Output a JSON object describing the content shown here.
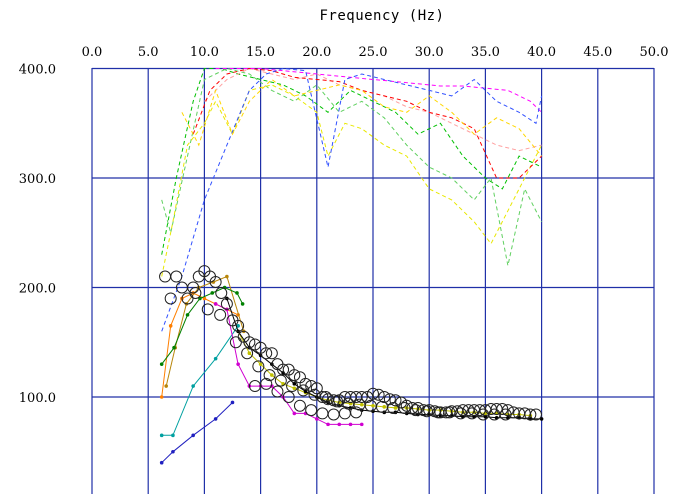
{
  "chart_data": {
    "type": "scatter",
    "title": "",
    "xlabel": "Frequency (Hz)",
    "ylabel": "",
    "xlim": [
      0,
      50
    ],
    "ylim": [
      0,
      400
    ],
    "x_ticks": [
      "0.0",
      "5.0",
      "10.0",
      "15.0",
      "20.0",
      "25.0",
      "30.0",
      "35.0",
      "40.0",
      "45.0",
      "50.0"
    ],
    "y_ticks": [
      "100.0",
      "200.0",
      "300.0",
      "400.0"
    ],
    "grid": true,
    "colors": {
      "grid": "#2030a8",
      "background": "#ffffff",
      "marker": "#222222"
    },
    "series": [
      {
        "style": "solid",
        "color": "#ff7f00",
        "x": [
          6.2,
          7.0,
          8.0,
          9.0,
          10.0,
          11.0,
          12.0,
          13.0
        ],
        "y": [
          100,
          165,
          190,
          195,
          190,
          185,
          180,
          175
        ]
      },
      {
        "style": "solid",
        "color": "#b8860b",
        "x": [
          6.6,
          7.4,
          8.4,
          9.5,
          10.8,
          12.0,
          13.5
        ],
        "y": [
          110,
          145,
          185,
          200,
          205,
          210,
          160
        ]
      },
      {
        "style": "solid",
        "color": "#00a0a0",
        "x": [
          6.2,
          7.2,
          9.0,
          11.0,
          13.0
        ],
        "y": [
          65,
          65,
          110,
          135,
          165
        ]
      },
      {
        "style": "solid",
        "color": "#008000",
        "x": [
          6.2,
          7.3,
          8.5,
          9.6,
          10.7,
          11.8,
          12.9,
          13.4
        ],
        "y": [
          130,
          145,
          175,
          190,
          195,
          200,
          195,
          185
        ]
      },
      {
        "style": "solid",
        "color": "#2020c0",
        "x": [
          6.2,
          7.2,
          9.0,
          11.0,
          12.5
        ],
        "y": [
          40,
          50,
          65,
          80,
          95
        ]
      },
      {
        "style": "solid",
        "color": "#d000d0",
        "x": [
          11.0,
          12.0,
          13.0,
          14.0,
          15.0,
          16.0,
          17.0,
          18.0,
          19.0,
          20.0,
          21.0,
          22.0,
          23.0,
          24.0
        ],
        "y": [
          185,
          180,
          130,
          110,
          110,
          110,
          100,
          85,
          85,
          80,
          75,
          75,
          75,
          75
        ]
      },
      {
        "style": "solid",
        "color": "#c0c000",
        "x": [
          13.0,
          14.0,
          15.0,
          16.0,
          17.0,
          18.0,
          19.0,
          20.0,
          21.0,
          22.0,
          23.0,
          24.0,
          25.0,
          26.0,
          27.0,
          28.0,
          29.0,
          30.0,
          31.0,
          32.0,
          33.0,
          34.0,
          35.0,
          36.0,
          37.0,
          38.0,
          39.0
        ],
        "y": [
          160,
          140,
          130,
          120,
          112,
          108,
          104,
          100,
          97,
          95,
          94,
          93,
          92,
          91,
          90,
          90,
          89,
          88,
          88,
          87,
          86,
          86,
          85,
          85,
          84,
          84,
          83
        ]
      },
      {
        "style": "solid",
        "color": "#000000",
        "x": [
          12.0,
          13.0,
          14.0,
          15.0,
          16.0,
          17.0,
          18.0,
          19.0,
          20.0,
          21.0,
          22.0,
          23.0,
          24.0,
          25.0,
          26.0,
          27.0,
          28.0,
          29.0,
          30.0,
          31.0,
          32.0,
          33.0,
          34.0,
          35.0,
          36.0,
          37.0,
          38.0,
          39.0,
          40.0
        ],
        "y": [
          190,
          160,
          145,
          138,
          130,
          122,
          112,
          105,
          100,
          95,
          92,
          90,
          88,
          87,
          86,
          86,
          85,
          84,
          84,
          83,
          83,
          82,
          82,
          82,
          81,
          81,
          81,
          80,
          80
        ]
      },
      {
        "style": "dashed",
        "color": "#00c000",
        "x": [
          6.2,
          7.5,
          9.0,
          10.0,
          11.5,
          13.0,
          15.0,
          17.0,
          19.0,
          21.0,
          23.0,
          25.0,
          27.0,
          29.0,
          31.0,
          33.0,
          35.0,
          36.5,
          38.0,
          40.0
        ],
        "y": [
          230,
          300,
          370,
          400,
          400,
          395,
          390,
          385,
          375,
          360,
          380,
          370,
          360,
          340,
          350,
          320,
          300,
          290,
          320,
          310
        ]
      },
      {
        "style": "dashed",
        "color": "#60d060",
        "x": [
          6.2,
          7.0,
          8.5,
          10.0,
          12.0,
          14.0,
          16.0,
          18.0,
          20.0,
          22.0,
          24.0,
          26.0,
          28.0,
          30.0,
          32.0,
          34.0,
          35.5,
          37.0,
          38.5,
          40.0
        ],
        "y": [
          280,
          250,
          320,
          390,
          400,
          395,
          380,
          370,
          385,
          360,
          370,
          355,
          330,
          310,
          300,
          280,
          300,
          220,
          290,
          260
        ]
      },
      {
        "style": "dashed",
        "color": "#e8e800",
        "x": [
          6.2,
          7.2,
          8.5,
          10.0,
          11.0,
          12.5,
          14.0,
          16.0,
          18.0,
          20.0,
          21.0,
          22.5,
          24.0,
          26.0,
          28.0,
          30.0,
          32.0,
          34.0,
          35.5,
          37.0,
          38.5,
          40.0
        ],
        "y": [
          210,
          260,
          330,
          350,
          370,
          340,
          380,
          385,
          375,
          360,
          320,
          350,
          345,
          330,
          320,
          290,
          280,
          260,
          240,
          270,
          300,
          330
        ]
      },
      {
        "style": "dashed",
        "color": "#ffa0a0",
        "x": [
          10.0,
          12.0,
          14.0,
          16.0,
          18.0,
          20.0,
          22.0,
          24.0,
          26.0,
          28.0,
          30.0,
          32.0,
          34.0,
          36.0,
          38.0,
          40.0
        ],
        "y": [
          370,
          390,
          400,
          395,
          390,
          395,
          385,
          380,
          375,
          365,
          360,
          350,
          340,
          330,
          325,
          330
        ]
      },
      {
        "style": "dashed",
        "color": "#ff0000",
        "x": [
          9.0,
          10.5,
          12.0,
          14.0,
          16.0,
          18.0,
          20.0,
          22.0,
          24.0,
          26.0,
          28.0,
          30.0,
          32.0,
          34.0,
          36.0,
          38.0,
          40.0
        ],
        "y": [
          340,
          380,
          395,
          400,
          398,
          392,
          390,
          388,
          380,
          375,
          370,
          360,
          355,
          345,
          300,
          300,
          320
        ]
      },
      {
        "style": "dashed",
        "color": "#ff00ff",
        "x": [
          11.0,
          13.0,
          15.0,
          17.0,
          19.0,
          21.0,
          23.0,
          25.0,
          27.0,
          29.0,
          31.0,
          33.0,
          35.0,
          37.0,
          39.0,
          40.0
        ],
        "y": [
          400,
          400,
          400,
          398,
          396,
          394,
          392,
          390,
          388,
          386,
          384,
          384,
          382,
          380,
          370,
          360
        ]
      },
      {
        "style": "dashed",
        "color": "#3050ff",
        "x": [
          6.2,
          8.0,
          10.0,
          12.0,
          14.0,
          15.5,
          17.0,
          19.0,
          21.0,
          22.5,
          24.0,
          26.0,
          28.0,
          30.0,
          32.0,
          34.0,
          36.0,
          38.0,
          39.5,
          40.0
        ],
        "y": [
          160,
          210,
          280,
          330,
          380,
          395,
          400,
          398,
          310,
          390,
          395,
          390,
          385,
          380,
          375,
          390,
          370,
          360,
          350,
          375
        ]
      },
      {
        "style": "dashed",
        "color": "#ffd700",
        "x": [
          8.0,
          9.5,
          11.0,
          12.5,
          14.0,
          16.0,
          18.0,
          20.0,
          22.0,
          24.0,
          26.0,
          28.0,
          30.0,
          32.0,
          34.0,
          36.0,
          38.0,
          40.0
        ],
        "y": [
          360,
          330,
          380,
          340,
          370,
          390,
          375,
          380,
          385,
          380,
          365,
          360,
          375,
          360,
          340,
          355,
          345,
          320
        ]
      }
    ],
    "markers": {
      "symbol": "circle",
      "x": [
        6.5,
        7.5,
        8.5,
        9.0,
        9.5,
        10.0,
        10.5,
        11.0,
        11.5,
        12.0,
        7.0,
        8.0,
        9.2,
        10.3,
        11.4,
        12.5,
        13.0,
        13.5,
        14.0,
        14.5,
        15.0,
        15.5,
        16.0,
        16.5,
        17.0,
        17.5,
        18.0,
        18.5,
        19.0,
        19.5,
        20.0,
        20.5,
        21.0,
        21.5,
        22.0,
        22.5,
        23.0,
        23.5,
        24.0,
        24.5,
        25.0,
        25.5,
        26.0,
        26.5,
        27.0,
        27.5,
        28.0,
        28.5,
        29.0,
        29.5,
        30.0,
        30.5,
        31.0,
        31.5,
        32.0,
        32.5,
        33.0,
        33.5,
        34.0,
        34.5,
        35.0,
        35.5,
        36.0,
        36.5,
        37.0,
        37.5,
        38.0,
        38.5,
        39.0,
        39.5,
        14.5,
        15.5,
        16.5,
        17.5,
        18.5,
        19.5,
        20.5,
        21.5,
        22.5,
        23.5,
        12.8,
        13.8,
        14.8,
        15.8,
        16.8,
        17.8,
        18.8,
        19.8,
        20.8,
        21.8,
        22.8,
        23.8,
        24.8,
        25.8,
        26.8,
        27.8,
        28.8,
        29.8,
        30.8,
        31.8,
        32.8,
        33.8,
        34.8,
        35.8,
        36.8
      ],
      "y": [
        210,
        210,
        190,
        200,
        210,
        215,
        210,
        205,
        195,
        185,
        190,
        200,
        195,
        180,
        175,
        170,
        165,
        155,
        150,
        148,
        145,
        140,
        140,
        130,
        125,
        125,
        120,
        118,
        112,
        110,
        108,
        100,
        98,
        97,
        97,
        100,
        100,
        100,
        100,
        100,
        103,
        102,
        100,
        98,
        97,
        95,
        92,
        90,
        90,
        88,
        88,
        87,
        86,
        86,
        87,
        87,
        88,
        88,
        88,
        88,
        88,
        89,
        89,
        89,
        88,
        86,
        85,
        85,
        84,
        84,
        110,
        112,
        105,
        100,
        92,
        88,
        85,
        84,
        85,
        86,
        150,
        140,
        128,
        120,
        115,
        110,
        106,
        102,
        100,
        96,
        94,
        93,
        92,
        91,
        90,
        90,
        88,
        87,
        86,
        86,
        85,
        85,
        84,
        84,
        84
      ]
    }
  }
}
